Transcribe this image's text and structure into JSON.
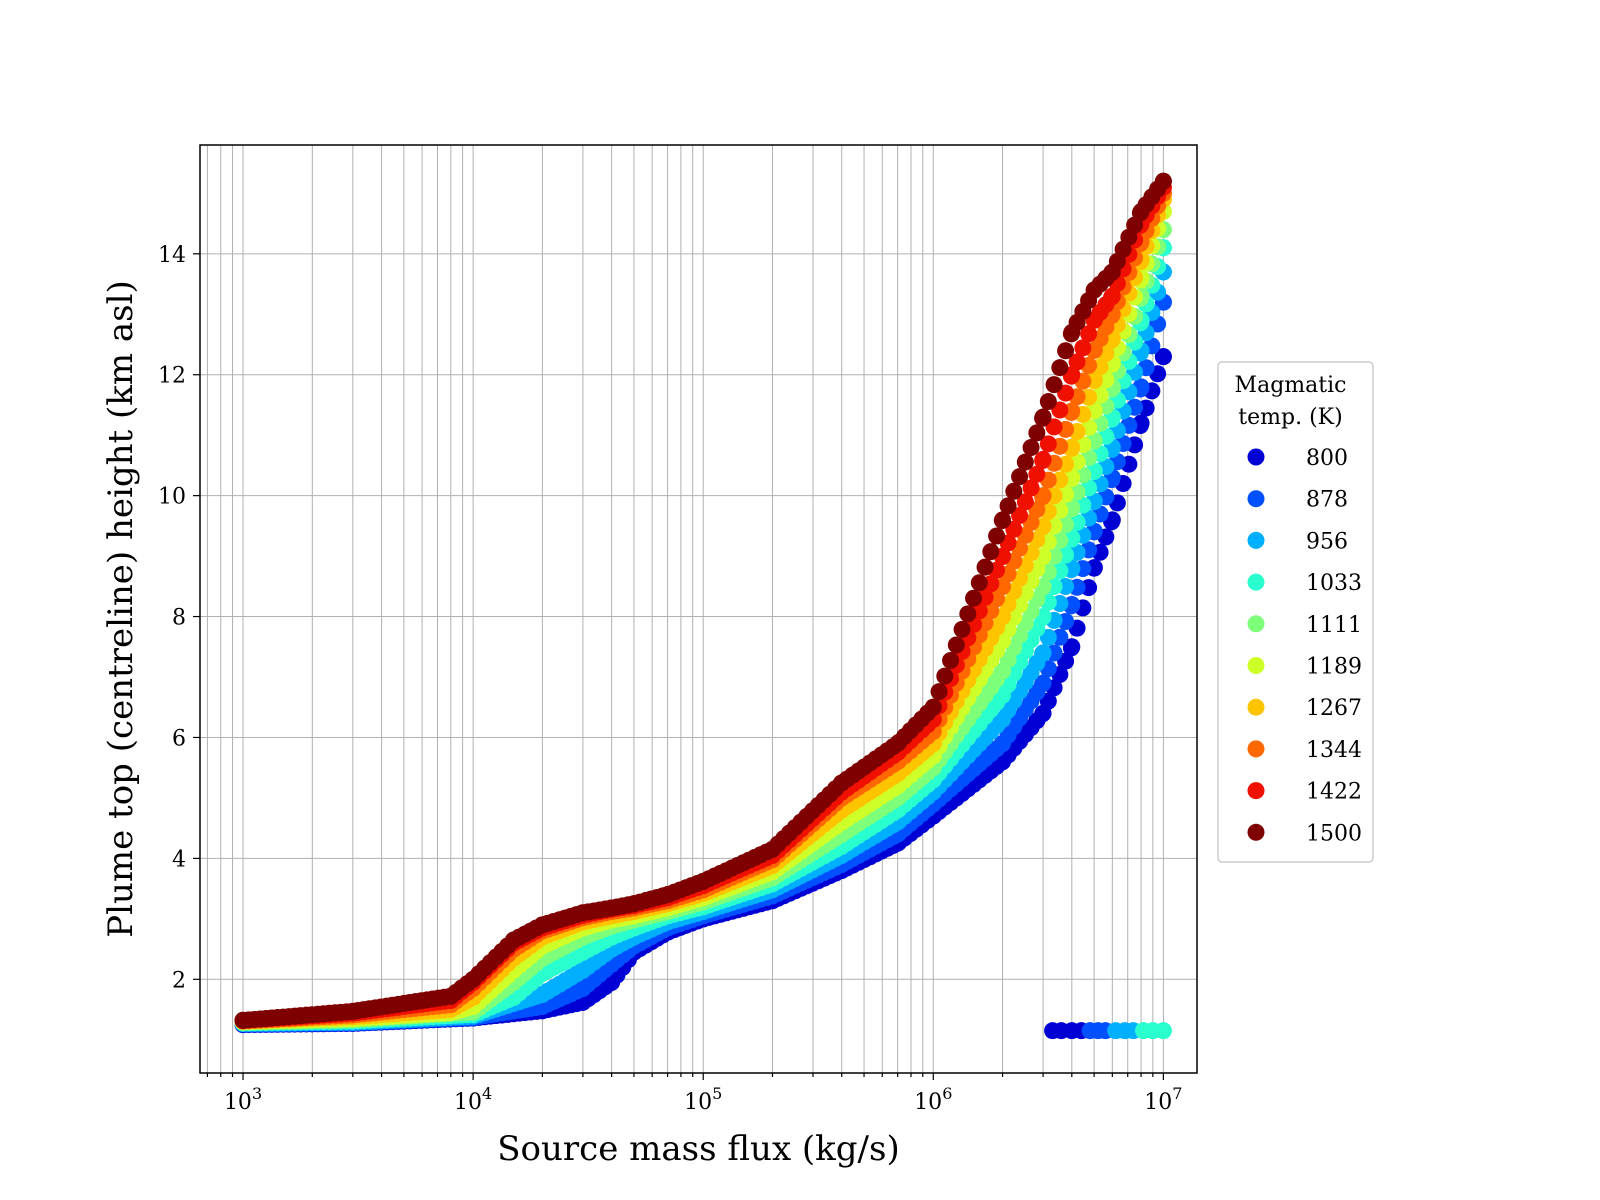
{
  "chart_data": {
    "type": "scatter",
    "title": "",
    "xlabel": "Source mass flux (kg/s)",
    "ylabel": "Plume top (centreline) height (km asl)",
    "xscale": "log",
    "xlim": [
      650,
      14000000
    ],
    "ylim": [
      0.45,
      15.8
    ],
    "x_ticks": [
      {
        "base": "10",
        "exp": "3",
        "value": 1000
      },
      {
        "base": "10",
        "exp": "4",
        "value": 10000
      },
      {
        "base": "10",
        "exp": "5",
        "value": 100000
      },
      {
        "base": "10",
        "exp": "6",
        "value": 1000000
      },
      {
        "base": "10",
        "exp": "7",
        "value": 10000000
      }
    ],
    "y_ticks": [
      2,
      4,
      6,
      8,
      10,
      12,
      14
    ],
    "grid": true,
    "legend": {
      "title_lines": [
        "Magmatic",
        "temp. (K)"
      ],
      "placement": "right, outside plot"
    },
    "series": [
      {
        "name": "800",
        "color": "#0000d4",
        "points": [
          [
            1000,
            1.25
          ],
          [
            3000,
            1.27
          ],
          [
            10000,
            1.36
          ],
          [
            20000,
            1.48
          ],
          [
            30000,
            1.62
          ],
          [
            40000,
            1.95
          ],
          [
            50000,
            2.45
          ],
          [
            70000,
            2.78
          ],
          [
            100000,
            3.0
          ],
          [
            200000,
            3.3
          ],
          [
            400000,
            3.8
          ],
          [
            700000,
            4.25
          ],
          [
            1000000,
            4.7
          ],
          [
            2000000,
            5.6
          ],
          [
            3000000,
            6.4
          ],
          [
            4000000,
            7.5
          ],
          [
            5000000,
            8.8
          ],
          [
            6000000,
            9.6
          ],
          [
            8000000,
            11.2
          ],
          [
            10000000,
            12.3
          ]
        ],
        "outliers": [
          [
            3300000,
            1.15
          ],
          [
            3600000,
            1.15
          ],
          [
            4000000,
            1.15
          ],
          [
            4400000,
            1.15
          ]
        ]
      },
      {
        "name": "878",
        "color": "#0050ff",
        "points": [
          [
            1000,
            1.26
          ],
          [
            3000,
            1.28
          ],
          [
            10000,
            1.37
          ],
          [
            20000,
            1.55
          ],
          [
            30000,
            1.85
          ],
          [
            40000,
            2.25
          ],
          [
            50000,
            2.55
          ],
          [
            70000,
            2.85
          ],
          [
            100000,
            3.05
          ],
          [
            200000,
            3.38
          ],
          [
            400000,
            3.9
          ],
          [
            700000,
            4.4
          ],
          [
            1000000,
            4.9
          ],
          [
            2000000,
            5.9
          ],
          [
            3000000,
            6.9
          ],
          [
            4000000,
            8.2
          ],
          [
            5000000,
            9.4
          ],
          [
            6000000,
            10.3
          ],
          [
            8000000,
            11.8
          ],
          [
            10000000,
            13.2
          ]
        ],
        "outliers": [
          [
            4800000,
            1.15
          ],
          [
            5200000,
            1.15
          ],
          [
            5600000,
            1.15
          ]
        ]
      },
      {
        "name": "956",
        "color": "#00b0ff",
        "points": [
          [
            1000,
            1.27
          ],
          [
            3000,
            1.29
          ],
          [
            10000,
            1.39
          ],
          [
            20000,
            1.75
          ],
          [
            30000,
            2.15
          ],
          [
            40000,
            2.5
          ],
          [
            50000,
            2.7
          ],
          [
            70000,
            2.95
          ],
          [
            100000,
            3.12
          ],
          [
            200000,
            3.48
          ],
          [
            400000,
            4.05
          ],
          [
            700000,
            4.6
          ],
          [
            1000000,
            5.1
          ],
          [
            2000000,
            6.3
          ],
          [
            3000000,
            7.4
          ],
          [
            4000000,
            8.8
          ],
          [
            5000000,
            9.9
          ],
          [
            6000000,
            10.8
          ],
          [
            8000000,
            12.4
          ],
          [
            10000000,
            13.7
          ]
        ],
        "outliers": [
          [
            6200000,
            1.15
          ],
          [
            6800000,
            1.15
          ],
          [
            7400000,
            1.15
          ]
        ]
      },
      {
        "name": "1033",
        "color": "#29ffce",
        "points": [
          [
            1000,
            1.28
          ],
          [
            3000,
            1.31
          ],
          [
            10000,
            1.42
          ],
          [
            15000,
            1.7
          ],
          [
            20000,
            2.1
          ],
          [
            30000,
            2.45
          ],
          [
            40000,
            2.7
          ],
          [
            50000,
            2.85
          ],
          [
            70000,
            3.05
          ],
          [
            100000,
            3.2
          ],
          [
            200000,
            3.58
          ],
          [
            400000,
            4.2
          ],
          [
            700000,
            4.8
          ],
          [
            1000000,
            5.3
          ],
          [
            2000000,
            6.7
          ],
          [
            3000000,
            8.0
          ],
          [
            4000000,
            9.3
          ],
          [
            5000000,
            10.4
          ],
          [
            6000000,
            11.3
          ],
          [
            8000000,
            12.9
          ],
          [
            10000000,
            14.1
          ]
        ],
        "outliers": [
          [
            8200000,
            1.15
          ],
          [
            9000000,
            1.15
          ],
          [
            10000000,
            1.15
          ]
        ]
      },
      {
        "name": "1111",
        "color": "#7dff7a",
        "points": [
          [
            1000,
            1.29
          ],
          [
            3000,
            1.33
          ],
          [
            10000,
            1.46
          ],
          [
            15000,
            1.95
          ],
          [
            20000,
            2.35
          ],
          [
            30000,
            2.7
          ],
          [
            40000,
            2.88
          ],
          [
            50000,
            2.98
          ],
          [
            70000,
            3.12
          ],
          [
            100000,
            3.28
          ],
          [
            200000,
            3.68
          ],
          [
            400000,
            4.4
          ],
          [
            700000,
            5.0
          ],
          [
            1000000,
            5.5
          ],
          [
            2000000,
            7.1
          ],
          [
            3000000,
            8.5
          ],
          [
            4000000,
            9.8
          ],
          [
            5000000,
            10.9
          ],
          [
            6000000,
            11.8
          ],
          [
            8000000,
            13.3
          ],
          [
            10000000,
            14.4
          ]
        ],
        "outliers": []
      },
      {
        "name": "1189",
        "color": "#ceff29",
        "points": [
          [
            1000,
            1.3
          ],
          [
            3000,
            1.35
          ],
          [
            8000,
            1.45
          ],
          [
            10000,
            1.55
          ],
          [
            15000,
            2.15
          ],
          [
            20000,
            2.55
          ],
          [
            30000,
            2.85
          ],
          [
            40000,
            2.98
          ],
          [
            50000,
            3.05
          ],
          [
            70000,
            3.18
          ],
          [
            100000,
            3.35
          ],
          [
            200000,
            3.78
          ],
          [
            400000,
            4.6
          ],
          [
            700000,
            5.2
          ],
          [
            1000000,
            5.7
          ],
          [
            2000000,
            7.6
          ],
          [
            3000000,
            9.0
          ],
          [
            4000000,
            10.3
          ],
          [
            5000000,
            11.4
          ],
          [
            6000000,
            12.2
          ],
          [
            8000000,
            13.6
          ],
          [
            10000000,
            14.7
          ]
        ],
        "outliers": []
      },
      {
        "name": "1267",
        "color": "#ffc400",
        "points": [
          [
            1000,
            1.31
          ],
          [
            3000,
            1.38
          ],
          [
            8000,
            1.5
          ],
          [
            10000,
            1.7
          ],
          [
            15000,
            2.35
          ],
          [
            20000,
            2.7
          ],
          [
            30000,
            2.95
          ],
          [
            40000,
            3.05
          ],
          [
            50000,
            3.12
          ],
          [
            70000,
            3.25
          ],
          [
            100000,
            3.42
          ],
          [
            200000,
            3.88
          ],
          [
            400000,
            4.8
          ],
          [
            700000,
            5.4
          ],
          [
            1000000,
            5.9
          ],
          [
            2000000,
            8.0
          ],
          [
            3000000,
            9.5
          ],
          [
            4000000,
            10.8
          ],
          [
            5000000,
            11.9
          ],
          [
            6000000,
            12.6
          ],
          [
            8000000,
            13.9
          ],
          [
            10000000,
            14.9
          ]
        ],
        "outliers": []
      },
      {
        "name": "1344",
        "color": "#ff6800",
        "points": [
          [
            1000,
            1.31
          ],
          [
            3000,
            1.41
          ],
          [
            8000,
            1.58
          ],
          [
            10000,
            1.85
          ],
          [
            15000,
            2.5
          ],
          [
            20000,
            2.8
          ],
          [
            30000,
            3.02
          ],
          [
            40000,
            3.12
          ],
          [
            50000,
            3.18
          ],
          [
            70000,
            3.3
          ],
          [
            100000,
            3.48
          ],
          [
            200000,
            3.98
          ],
          [
            400000,
            5.0
          ],
          [
            700000,
            5.6
          ],
          [
            1000000,
            6.1
          ],
          [
            2000000,
            8.5
          ],
          [
            3000000,
            10.0
          ],
          [
            4000000,
            11.4
          ],
          [
            5000000,
            12.4
          ],
          [
            6000000,
            13.0
          ],
          [
            8000000,
            14.2
          ],
          [
            10000000,
            15.0
          ]
        ],
        "outliers": []
      },
      {
        "name": "1422",
        "color": "#f01000",
        "points": [
          [
            1000,
            1.32
          ],
          [
            3000,
            1.44
          ],
          [
            8000,
            1.65
          ],
          [
            10000,
            1.95
          ],
          [
            15000,
            2.6
          ],
          [
            20000,
            2.85
          ],
          [
            30000,
            3.06
          ],
          [
            40000,
            3.16
          ],
          [
            50000,
            3.22
          ],
          [
            70000,
            3.35
          ],
          [
            100000,
            3.55
          ],
          [
            200000,
            4.05
          ],
          [
            400000,
            5.1
          ],
          [
            700000,
            5.75
          ],
          [
            1000000,
            6.3
          ],
          [
            2000000,
            9.0
          ],
          [
            3000000,
            10.6
          ],
          [
            4000000,
            12.0
          ],
          [
            5000000,
            12.9
          ],
          [
            6000000,
            13.3
          ],
          [
            8000000,
            14.5
          ],
          [
            10000000,
            15.1
          ]
        ],
        "outliers": []
      },
      {
        "name": "1500",
        "color": "#7f0000",
        "points": [
          [
            1000,
            1.32
          ],
          [
            3000,
            1.47
          ],
          [
            8000,
            1.72
          ],
          [
            10000,
            2.0
          ],
          [
            15000,
            2.65
          ],
          [
            20000,
            2.9
          ],
          [
            30000,
            3.1
          ],
          [
            40000,
            3.18
          ],
          [
            50000,
            3.25
          ],
          [
            70000,
            3.4
          ],
          [
            100000,
            3.62
          ],
          [
            200000,
            4.15
          ],
          [
            400000,
            5.25
          ],
          [
            700000,
            5.9
          ],
          [
            1000000,
            6.5
          ],
          [
            2000000,
            9.6
          ],
          [
            3000000,
            11.3
          ],
          [
            4000000,
            12.7
          ],
          [
            5000000,
            13.4
          ],
          [
            6000000,
            13.7
          ],
          [
            8000000,
            14.7
          ],
          [
            10000000,
            15.2
          ]
        ],
        "outliers": []
      }
    ]
  }
}
